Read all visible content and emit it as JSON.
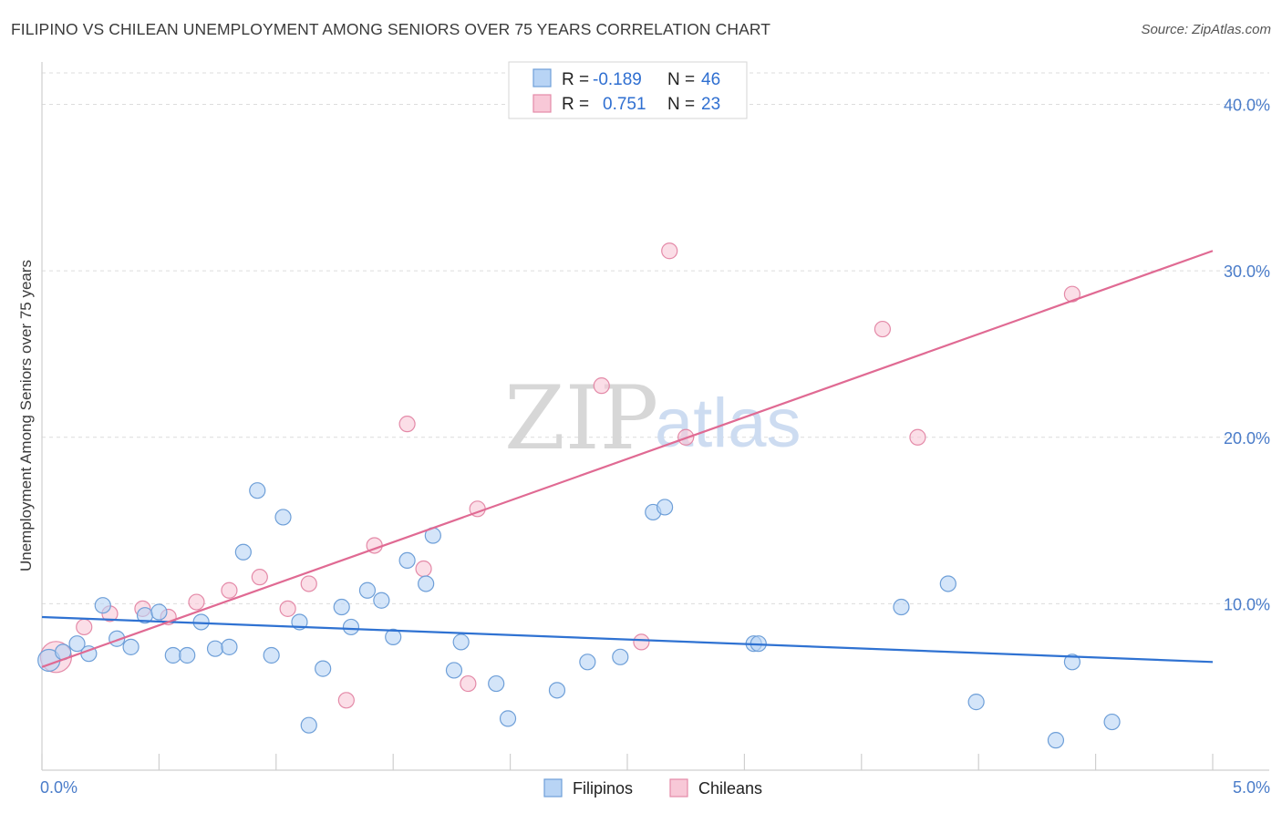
{
  "title": "FILIPINO VS CHILEAN UNEMPLOYMENT AMONG SENIORS OVER 75 YEARS CORRELATION CHART",
  "source": "Source: ZipAtlas.com",
  "watermark": {
    "zip": "ZIP",
    "atlas": "atlas"
  },
  "colors": {
    "filipinos_fill": "#b8d4f5",
    "filipinos_stroke": "#6e9fd8",
    "filipinos_line": "#2f72d2",
    "chileans_fill": "#f8c8d7",
    "chileans_stroke": "#e48aa8",
    "chileans_line": "#e06a93",
    "grid": "#dcdcdc",
    "tick_text": "#4a7cc9"
  },
  "chart_data": {
    "type": "scatter",
    "ylabel": "Unemployment Among Seniors over 75 years",
    "xlim": [
      0,
      5
    ],
    "ylim": [
      0,
      42
    ],
    "x_tick_labels": [
      {
        "value": 0,
        "label": "0.0%"
      },
      {
        "value": 5,
        "label": "5.0%"
      }
    ],
    "y_tick_labels": [
      {
        "value": 10,
        "label": "10.0%"
      },
      {
        "value": 20,
        "label": "20.0%"
      },
      {
        "value": 30,
        "label": "30.0%"
      },
      {
        "value": 40,
        "label": "40.0%"
      }
    ],
    "legend": {
      "entries": [
        {
          "r_label": "R =",
          "r_value": "-0.189",
          "n_label": "N =",
          "n_value": "46"
        },
        {
          "r_label": "R =",
          "r_value": "0.751",
          "n_label": "N =",
          "n_value": "23"
        }
      ]
    },
    "series": [
      {
        "name": "Filipinos",
        "trend": [
          [
            0,
            9.2
          ],
          [
            5,
            6.5
          ]
        ],
        "points": [
          [
            0.03,
            6.6
          ],
          [
            0.09,
            7.1
          ],
          [
            0.15,
            7.6
          ],
          [
            0.2,
            7.0
          ],
          [
            0.26,
            9.9
          ],
          [
            0.32,
            7.9
          ],
          [
            0.38,
            7.4
          ],
          [
            0.44,
            9.3
          ],
          [
            0.5,
            9.5
          ],
          [
            0.56,
            6.9
          ],
          [
            0.62,
            6.9
          ],
          [
            0.68,
            8.9
          ],
          [
            0.74,
            7.3
          ],
          [
            0.8,
            7.4
          ],
          [
            0.86,
            13.1
          ],
          [
            0.92,
            16.8
          ],
          [
            0.98,
            6.9
          ],
          [
            1.03,
            15.2
          ],
          [
            1.1,
            8.9
          ],
          [
            1.14,
            2.7
          ],
          [
            1.2,
            6.1
          ],
          [
            1.28,
            9.8
          ],
          [
            1.32,
            8.6
          ],
          [
            1.39,
            10.8
          ],
          [
            1.45,
            10.2
          ],
          [
            1.5,
            8.0
          ],
          [
            1.56,
            12.6
          ],
          [
            1.64,
            11.2
          ],
          [
            1.67,
            14.1
          ],
          [
            1.76,
            6.0
          ],
          [
            1.79,
            7.7
          ],
          [
            1.94,
            5.2
          ],
          [
            1.99,
            3.1
          ],
          [
            2.2,
            4.8
          ],
          [
            2.33,
            6.5
          ],
          [
            2.47,
            6.8
          ],
          [
            2.61,
            15.5
          ],
          [
            2.66,
            15.8
          ],
          [
            3.04,
            7.6
          ],
          [
            3.06,
            7.6
          ],
          [
            3.67,
            9.8
          ],
          [
            3.87,
            11.2
          ],
          [
            3.99,
            4.1
          ],
          [
            4.4,
            6.5
          ],
          [
            4.33,
            1.8
          ],
          [
            4.57,
            2.9
          ]
        ]
      },
      {
        "name": "Chileans",
        "trend": [
          [
            0,
            6.2
          ],
          [
            5,
            31.2
          ]
        ],
        "points": [
          [
            0.06,
            6.8
          ],
          [
            0.18,
            8.6
          ],
          [
            0.29,
            9.4
          ],
          [
            0.43,
            9.7
          ],
          [
            0.54,
            9.2
          ],
          [
            0.66,
            10.1
          ],
          [
            0.8,
            10.8
          ],
          [
            0.93,
            11.6
          ],
          [
            1.05,
            9.7
          ],
          [
            1.14,
            11.2
          ],
          [
            1.3,
            4.2
          ],
          [
            1.42,
            13.5
          ],
          [
            1.56,
            20.8
          ],
          [
            1.63,
            12.1
          ],
          [
            1.82,
            5.2
          ],
          [
            1.86,
            15.7
          ],
          [
            2.39,
            23.1
          ],
          [
            2.56,
            7.7
          ],
          [
            2.68,
            31.2
          ],
          [
            2.75,
            20.0
          ],
          [
            3.59,
            26.5
          ],
          [
            3.74,
            20.0
          ],
          [
            4.4,
            28.6
          ]
        ]
      }
    ],
    "bottom_legend": [
      "Filipinos",
      "Chileans"
    ]
  }
}
